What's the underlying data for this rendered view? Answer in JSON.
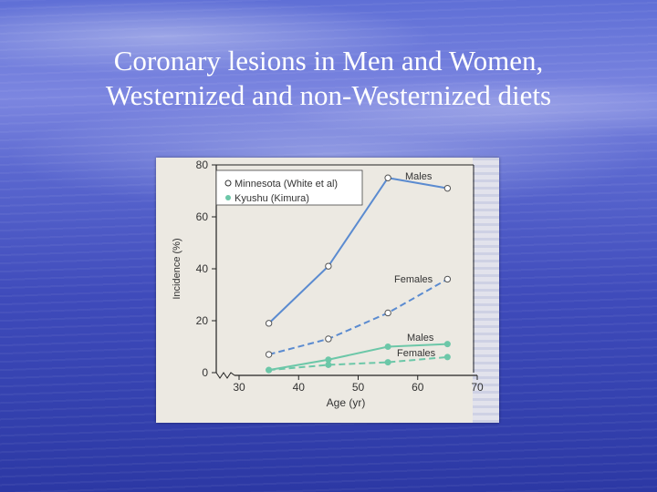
{
  "slide": {
    "title_line1": "Coronary lesions in Men and Women,",
    "title_line2": "Westernized and non-Westernized diets"
  },
  "colors": {
    "minnesota": "#5b8bd0",
    "kyushu": "#6cc7a8"
  },
  "chart_data": {
    "type": "line",
    "xlabel": "Age (yr)",
    "ylabel": "Incidence (%)",
    "xlim": [
      30,
      70
    ],
    "ylim": [
      0,
      80
    ],
    "xticks": [
      30,
      40,
      50,
      60,
      70
    ],
    "yticks": [
      0,
      20,
      40,
      60,
      80
    ],
    "grid": false,
    "legend": {
      "placement": "top-left",
      "entries": [
        "Minnesota (White et al)",
        "Kyushu (Kimura)"
      ]
    },
    "series": [
      {
        "group": "Minnesota (White et al)",
        "name": "Males",
        "style": "solid",
        "marker": "open",
        "x": [
          35,
          45,
          55,
          65
        ],
        "y": [
          19,
          41,
          75,
          71
        ]
      },
      {
        "group": "Minnesota (White et al)",
        "name": "Females",
        "style": "dashed",
        "marker": "open",
        "x": [
          35,
          45,
          55,
          65
        ],
        "y": [
          7,
          13,
          23,
          36
        ]
      },
      {
        "group": "Kyushu (Kimura)",
        "name": "Males",
        "style": "solid",
        "marker": "filled",
        "x": [
          35,
          45,
          55,
          65
        ],
        "y": [
          1,
          5,
          10,
          11
        ]
      },
      {
        "group": "Kyushu (Kimura)",
        "name": "Females",
        "style": "dashed",
        "marker": "filled",
        "x": [
          35,
          45,
          55,
          65
        ],
        "y": [
          1,
          3,
          4,
          6
        ]
      }
    ],
    "annotations": [
      "Males",
      "Females",
      "Males",
      "Females"
    ]
  }
}
